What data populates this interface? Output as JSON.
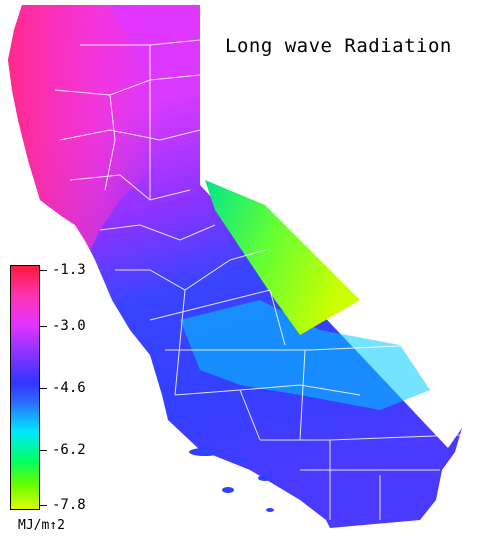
{
  "map": {
    "title": "Long wave Radiation"
  },
  "legend": {
    "ticks": [
      "-1.3",
      "-3.0",
      "-4.6",
      "-6.2",
      "-7.8"
    ],
    "unit": "MJ/m↑2"
  },
  "colors": {
    "high": "#ff1a3c",
    "mid_high": "#e633ff",
    "mid": "#3333ff",
    "low_mid": "#00e6ff",
    "low": "#00ff66",
    "lowest": "#ddff00",
    "county_lines": "#ffffff"
  }
}
